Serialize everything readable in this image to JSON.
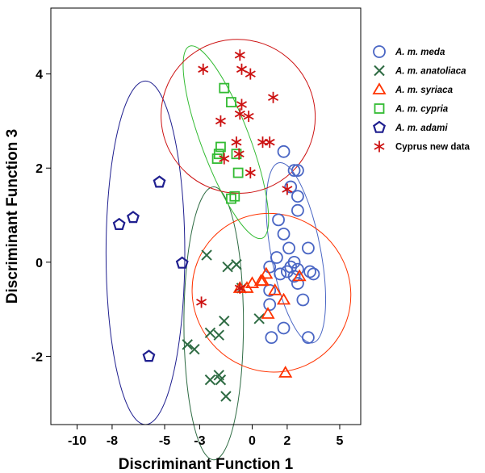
{
  "chart_data": {
    "type": "scatter",
    "xlabel": "Discriminant Function 1",
    "ylabel": "Discriminant Function 3",
    "xlim": [
      -11.5,
      6.2
    ],
    "ylim": [
      -3.45,
      5.4
    ],
    "xticks": [
      -10,
      -8,
      -5,
      -3,
      0,
      2,
      5
    ],
    "xtick_labels": [
      "-10",
      "-8",
      "-5",
      "-3",
      "0",
      "2",
      "5"
    ],
    "yticks": [
      -2,
      0,
      2,
      4
    ],
    "ytick_labels": [
      "-2",
      "0",
      "2",
      "4"
    ],
    "grid": false,
    "legend_position": "right",
    "series": [
      {
        "name": "A. m. meda",
        "italic": true,
        "marker": "circle",
        "color": "#4a66c4",
        "ellipse": {
          "cx": 2.5,
          "cy": 0.2,
          "rx": 1.4,
          "ry": 1.95,
          "angle": 4
        },
        "points": [
          [
            1.8,
            2.35
          ],
          [
            2.4,
            1.95
          ],
          [
            2.6,
            1.95
          ],
          [
            2.2,
            1.6
          ],
          [
            2.6,
            1.4
          ],
          [
            2.6,
            1.1
          ],
          [
            1.5,
            0.9
          ],
          [
            1.8,
            0.6
          ],
          [
            2.1,
            0.3
          ],
          [
            3.2,
            0.3
          ],
          [
            1.4,
            0.1
          ],
          [
            2.4,
            0.0
          ],
          [
            1.0,
            -0.1
          ],
          [
            2.2,
            -0.1
          ],
          [
            2.6,
            -0.15
          ],
          [
            3.3,
            -0.2
          ],
          [
            3.5,
            -0.25
          ],
          [
            2.0,
            -0.2
          ],
          [
            1.6,
            -0.25
          ],
          [
            2.4,
            -0.3
          ],
          [
            2.6,
            -0.45
          ],
          [
            1.0,
            -0.6
          ],
          [
            2.9,
            -0.8
          ],
          [
            1.0,
            -0.9
          ],
          [
            1.8,
            -1.4
          ],
          [
            3.2,
            -1.6
          ],
          [
            1.1,
            -1.6
          ]
        ]
      },
      {
        "name": "A. m. anatoliaca",
        "italic": true,
        "marker": "x",
        "color": "#2e6b43",
        "ellipse": {
          "cx": -2.2,
          "cy": -1.3,
          "rx": 2.9,
          "ry": 1.7,
          "angle": 90
        },
        "points": [
          [
            -2.6,
            0.15
          ],
          [
            -1.4,
            -0.1
          ],
          [
            -0.9,
            -0.05
          ],
          [
            -0.6,
            -0.55
          ],
          [
            -1.6,
            -1.25
          ],
          [
            -1.9,
            -1.55
          ],
          [
            -2.4,
            -1.5
          ],
          [
            -3.7,
            -1.75
          ],
          [
            -3.3,
            -1.85
          ],
          [
            -1.9,
            -2.4
          ],
          [
            -1.8,
            -2.5
          ],
          [
            -2.4,
            -2.5
          ],
          [
            -1.5,
            -2.85
          ],
          [
            0.4,
            -1.2
          ]
        ]
      },
      {
        "name": "A. m. syriaca",
        "italic": true,
        "marker": "triangle",
        "color": "#ff3300",
        "ellipse": {
          "cx": 1.1,
          "cy": -0.65,
          "rx": 3.5,
          "ry": 1.75,
          "angle": -20
        },
        "points": [
          [
            0.8,
            -0.25
          ],
          [
            0.5,
            -0.4
          ],
          [
            0.0,
            -0.45
          ],
          [
            -0.7,
            -0.55
          ],
          [
            -0.3,
            -0.55
          ],
          [
            1.3,
            -0.6
          ],
          [
            1.8,
            -0.8
          ],
          [
            0.9,
            -1.1
          ],
          [
            1.9,
            -2.35
          ],
          [
            2.7,
            -0.3
          ],
          [
            0.6,
            -0.4
          ]
        ]
      },
      {
        "name": "A. m. cypria",
        "italic": true,
        "marker": "square",
        "color": "#33bb33",
        "ellipse": {
          "cx": -1.5,
          "cy": 2.55,
          "rx": 1.3,
          "ry": 2.2,
          "angle": 8
        },
        "points": [
          [
            -1.6,
            3.7
          ],
          [
            -1.2,
            3.4
          ],
          [
            -1.8,
            2.45
          ],
          [
            -1.9,
            2.3
          ],
          [
            -2.0,
            2.2
          ],
          [
            -0.9,
            2.3
          ],
          [
            -0.8,
            1.9
          ],
          [
            -1.0,
            1.4
          ],
          [
            -1.2,
            1.35
          ]
        ]
      },
      {
        "name": "A. m. adami",
        "italic": true,
        "marker": "pentagon",
        "color": "#1f1f8f",
        "ellipse": {
          "cx": -6.1,
          "cy": 0.2,
          "rx": 3.65,
          "ry": 2.25,
          "angle": 90
        },
        "points": [
          [
            -5.3,
            1.7
          ],
          [
            -7.6,
            0.8
          ],
          [
            -6.8,
            0.95
          ],
          [
            -4.0,
            -0.02
          ],
          [
            -5.9,
            -2.0
          ]
        ]
      },
      {
        "name": "Cyprus new data",
        "italic": false,
        "marker": "asterisk",
        "color": "#cc1111",
        "ellipse": {
          "cx": -0.8,
          "cy": 3.1,
          "rx": 3.5,
          "ry": 1.7,
          "angle": -18
        },
        "points": [
          [
            -0.7,
            4.4
          ],
          [
            -2.8,
            4.1
          ],
          [
            -0.6,
            4.1
          ],
          [
            -0.1,
            4.0
          ],
          [
            -0.6,
            3.35
          ],
          [
            -0.7,
            3.15
          ],
          [
            -0.2,
            3.1
          ],
          [
            -1.8,
            3.0
          ],
          [
            1.2,
            3.5
          ],
          [
            0.6,
            2.55
          ],
          [
            1.0,
            2.55
          ],
          [
            -0.9,
            2.55
          ],
          [
            -0.75,
            2.3
          ],
          [
            -1.6,
            2.2
          ],
          [
            -0.1,
            1.9
          ],
          [
            2.0,
            1.55
          ],
          [
            -0.7,
            -0.55
          ],
          [
            -2.9,
            -0.85
          ]
        ]
      }
    ]
  }
}
